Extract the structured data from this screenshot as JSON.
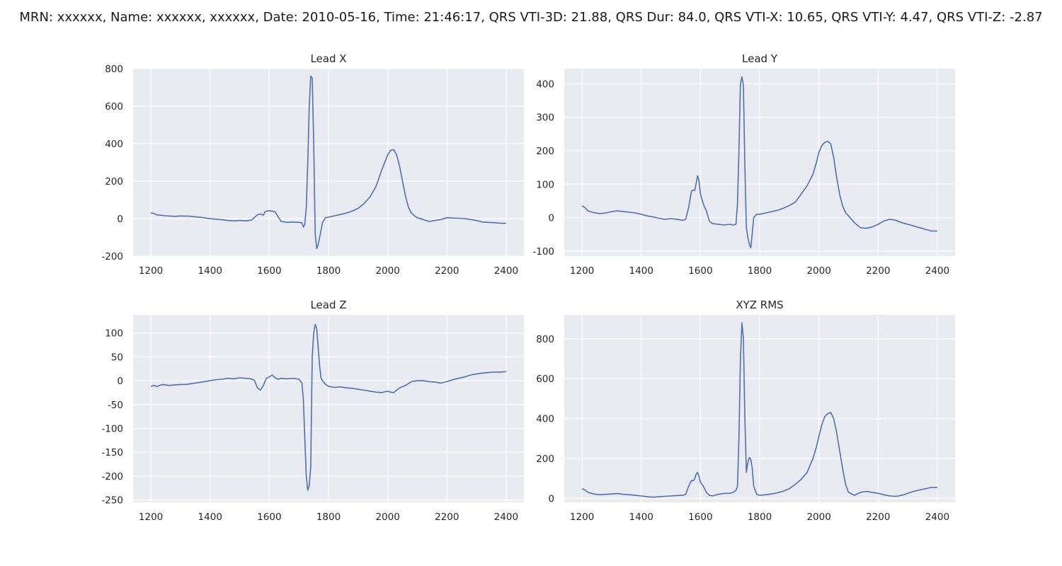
{
  "suptitle": "MRN: xxxxxx, Name: xxxxxx, xxxxxx, Date: 2010-05-16, Time: 21:46:17, QRS VTI-3D: 21.88, QRS Dur: 84.0, QRS VTI-X: 10.65, QRS VTI-Y: 4.47, QRS VTI-Z: -2.87",
  "colors": {
    "panel_bg": "#eaeaf2",
    "grid": "#ffffff",
    "line": "#4c72b0"
  },
  "chart_data": [
    {
      "type": "line",
      "title": "Lead X",
      "xlim": [
        1140,
        2460
      ],
      "ylim": [
        -200,
        800
      ],
      "xticks": [
        1200,
        1400,
        1600,
        1800,
        2000,
        2200,
        2400
      ],
      "yticks": [
        -200,
        0,
        200,
        400,
        600,
        800
      ],
      "grid": true,
      "series": [
        {
          "x": [
            1200,
            1210,
            1220,
            1250,
            1280,
            1300,
            1330,
            1360,
            1380,
            1390,
            1400,
            1420,
            1440,
            1460,
            1480,
            1500,
            1520,
            1540,
            1560,
            1570,
            1580,
            1585,
            1590,
            1600,
            1610,
            1620,
            1630,
            1640,
            1660,
            1680,
            1700,
            1710,
            1715,
            1720,
            1725,
            1730,
            1735,
            1740,
            1745,
            1750,
            1755,
            1760,
            1765,
            1770,
            1780,
            1790,
            1800,
            1820,
            1840,
            1860,
            1880,
            1900,
            1920,
            1940,
            1960,
            1980,
            2000,
            2010,
            2020,
            2030,
            2040,
            2050,
            2060,
            2070,
            2080,
            2090,
            2100,
            2120,
            2140,
            2160,
            2180,
            2200,
            2220,
            2240,
            2260,
            2280,
            2300,
            2320,
            2340,
            2360,
            2380,
            2400
          ],
          "y": [
            30,
            28,
            20,
            15,
            12,
            14,
            13,
            8,
            5,
            2,
            0,
            -3,
            -6,
            -10,
            -12,
            -10,
            -12,
            -8,
            20,
            25,
            18,
            35,
            40,
            42,
            40,
            35,
            10,
            -15,
            -20,
            -18,
            -20,
            -22,
            -45,
            -30,
            60,
            300,
            600,
            760,
            750,
            400,
            -80,
            -160,
            -140,
            -100,
            -20,
            5,
            8,
            15,
            22,
            30,
            40,
            55,
            80,
            115,
            170,
            260,
            340,
            365,
            368,
            340,
            280,
            200,
            120,
            60,
            30,
            15,
            5,
            -5,
            -15,
            -10,
            -5,
            5,
            3,
            2,
            0,
            -5,
            -10,
            -18,
            -20,
            -22,
            -24,
            -25
          ]
        }
      ]
    },
    {
      "type": "line",
      "title": "Lead Y",
      "xlim": [
        1140,
        2460
      ],
      "ylim": [
        -115,
        445
      ],
      "xticks": [
        1200,
        1400,
        1600,
        1800,
        2000,
        2200,
        2400
      ],
      "yticks": [
        -100,
        0,
        100,
        200,
        300,
        400
      ],
      "grid": true,
      "series": [
        {
          "x": [
            1200,
            1210,
            1220,
            1240,
            1260,
            1280,
            1300,
            1320,
            1340,
            1360,
            1380,
            1400,
            1420,
            1440,
            1460,
            1480,
            1500,
            1520,
            1540,
            1550,
            1560,
            1570,
            1575,
            1580,
            1585,
            1590,
            1595,
            1600,
            1610,
            1620,
            1630,
            1640,
            1660,
            1680,
            1700,
            1710,
            1720,
            1725,
            1730,
            1735,
            1740,
            1745,
            1750,
            1755,
            1760,
            1765,
            1770,
            1780,
            1790,
            1800,
            1820,
            1840,
            1860,
            1880,
            1900,
            1920,
            1940,
            1960,
            1980,
            1990,
            2000,
            2010,
            2020,
            2030,
            2040,
            2050,
            2060,
            2070,
            2080,
            2090,
            2100,
            2120,
            2140,
            2160,
            2180,
            2200,
            2220,
            2240,
            2260,
            2280,
            2300,
            2320,
            2340,
            2360,
            2380,
            2400
          ],
          "y": [
            35,
            30,
            20,
            15,
            12,
            14,
            18,
            20,
            18,
            16,
            14,
            10,
            5,
            2,
            -2,
            -5,
            -3,
            -5,
            -8,
            -5,
            30,
            80,
            82,
            80,
            100,
            125,
            110,
            70,
            40,
            20,
            -10,
            -18,
            -20,
            -22,
            -20,
            -22,
            -20,
            40,
            200,
            400,
            420,
            395,
            150,
            -30,
            -60,
            -80,
            -90,
            0,
            10,
            10,
            14,
            18,
            22,
            28,
            36,
            46,
            70,
            95,
            130,
            160,
            195,
            215,
            225,
            228,
            220,
            180,
            120,
            70,
            35,
            15,
            5,
            -15,
            -30,
            -32,
            -28,
            -20,
            -10,
            -5,
            -8,
            -15,
            -20,
            -25,
            -30,
            -35,
            -40,
            -40
          ]
        }
      ]
    },
    {
      "type": "line",
      "title": "Lead Z",
      "xlim": [
        1140,
        2460
      ],
      "ylim": [
        -255,
        138
      ],
      "xticks": [
        1200,
        1400,
        1600,
        1800,
        2000,
        2200,
        2400
      ],
      "yticks": [
        -250,
        -200,
        -150,
        -100,
        -50,
        0,
        50,
        100
      ],
      "grid": true,
      "series": [
        {
          "x": [
            1200,
            1210,
            1220,
            1240,
            1260,
            1280,
            1300,
            1320,
            1340,
            1360,
            1380,
            1400,
            1420,
            1440,
            1460,
            1480,
            1500,
            1520,
            1540,
            1550,
            1560,
            1570,
            1580,
            1590,
            1600,
            1610,
            1620,
            1630,
            1640,
            1660,
            1680,
            1700,
            1710,
            1715,
            1720,
            1725,
            1730,
            1735,
            1740,
            1745,
            1750,
            1755,
            1760,
            1765,
            1770,
            1775,
            1780,
            1790,
            1800,
            1820,
            1840,
            1860,
            1880,
            1900,
            1920,
            1940,
            1960,
            1980,
            2000,
            2010,
            2020,
            2040,
            2060,
            2080,
            2100,
            2120,
            2140,
            2160,
            2180,
            2200,
            2220,
            2240,
            2260,
            2280,
            2300,
            2320,
            2340,
            2360,
            2380,
            2400
          ],
          "y": [
            -12,
            -10,
            -12,
            -8,
            -10,
            -9,
            -8,
            -8,
            -6,
            -4,
            -2,
            0,
            2,
            3,
            5,
            4,
            6,
            5,
            4,
            0,
            -15,
            -20,
            -10,
            5,
            8,
            12,
            6,
            3,
            5,
            4,
            5,
            3,
            -5,
            -40,
            -120,
            -200,
            -230,
            -220,
            -180,
            50,
            100,
            118,
            110,
            70,
            30,
            5,
            0,
            -8,
            -12,
            -14,
            -13,
            -15,
            -16,
            -18,
            -20,
            -22,
            -24,
            -25,
            -22,
            -24,
            -25,
            -15,
            -10,
            -2,
            0,
            0,
            -2,
            -3,
            -5,
            -2,
            2,
            5,
            8,
            12,
            14,
            16,
            17,
            18,
            18,
            19
          ]
        }
      ]
    },
    {
      "type": "line",
      "title": "XYZ RMS",
      "xlim": [
        1140,
        2460
      ],
      "ylim": [
        -20,
        920
      ],
      "xticks": [
        1200,
        1400,
        1600,
        1800,
        2000,
        2200,
        2400
      ],
      "yticks": [
        0,
        200,
        400,
        600,
        800
      ],
      "grid": true,
      "series": [
        {
          "x": [
            1200,
            1210,
            1220,
            1240,
            1260,
            1280,
            1300,
            1320,
            1340,
            1360,
            1380,
            1400,
            1420,
            1440,
            1460,
            1480,
            1500,
            1520,
            1540,
            1550,
            1560,
            1570,
            1575,
            1580,
            1585,
            1590,
            1595,
            1600,
            1610,
            1620,
            1630,
            1640,
            1660,
            1680,
            1700,
            1710,
            1720,
            1725,
            1730,
            1735,
            1740,
            1745,
            1750,
            1755,
            1760,
            1765,
            1770,
            1775,
            1780,
            1790,
            1800,
            1820,
            1840,
            1860,
            1880,
            1900,
            1920,
            1940,
            1960,
            1980,
            1990,
            2000,
            2010,
            2020,
            2030,
            2040,
            2050,
            2060,
            2070,
            2080,
            2090,
            2100,
            2120,
            2140,
            2160,
            2180,
            2200,
            2220,
            2240,
            2260,
            2280,
            2300,
            2320,
            2340,
            2360,
            2380,
            2400
          ],
          "y": [
            48,
            42,
            30,
            22,
            18,
            20,
            22,
            24,
            20,
            18,
            15,
            12,
            8,
            6,
            8,
            10,
            12,
            14,
            15,
            20,
            60,
            90,
            88,
            95,
            120,
            130,
            110,
            80,
            60,
            30,
            15,
            12,
            20,
            25,
            25,
            30,
            40,
            60,
            300,
            700,
            880,
            800,
            400,
            130,
            180,
            205,
            195,
            150,
            60,
            20,
            15,
            18,
            22,
            28,
            36,
            48,
            70,
            95,
            130,
            200,
            250,
            310,
            370,
            410,
            425,
            430,
            400,
            330,
            240,
            150,
            70,
            30,
            15,
            30,
            35,
            30,
            25,
            18,
            12,
            10,
            15,
            25,
            35,
            42,
            48,
            55,
            55
          ]
        }
      ]
    }
  ]
}
